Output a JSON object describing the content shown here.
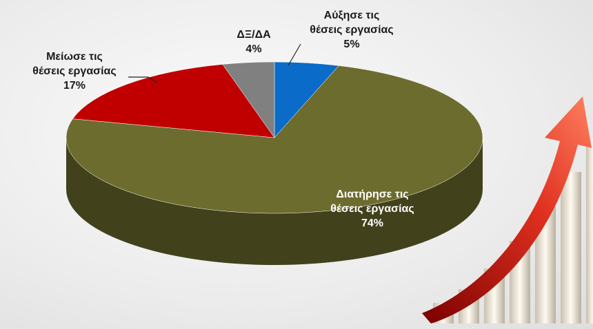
{
  "chart_data": {
    "type": "pie3d",
    "categories": [
      "Αύξησε τις\nθέσεις εργασίας",
      "Διατήρησε τις\nθέσεις εργασίας",
      "Μείωσε τις\nθέσεις εργασίας",
      "ΔΞ/ΔΑ"
    ],
    "values": [
      5,
      74,
      17,
      4
    ],
    "value_labels": [
      "5%",
      "74%",
      "17%",
      "4%"
    ],
    "colors": [
      "#0a6cc8",
      "#6d6c2f",
      "#c00000",
      "#808080"
    ]
  }
}
